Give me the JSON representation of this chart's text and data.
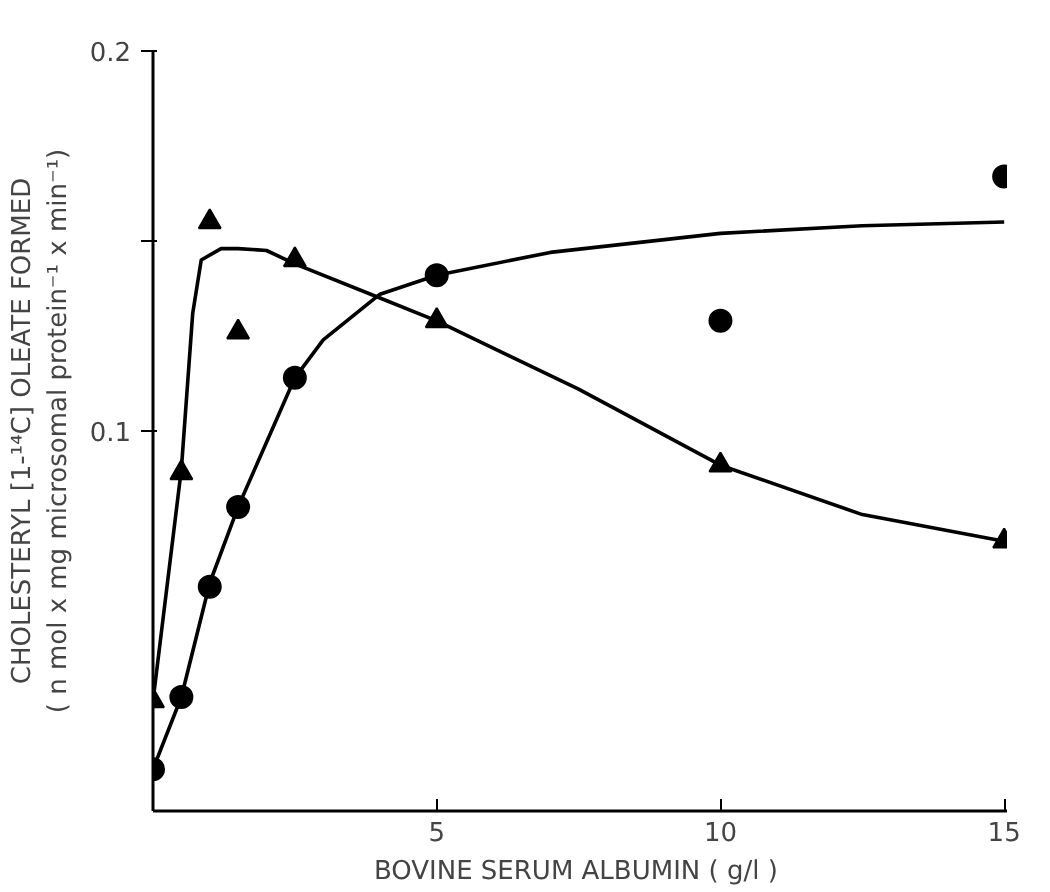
{
  "chart_data": {
    "type": "scatter",
    "xlabel": "BOVINE SERUM ALBUMIN  ( g/l )",
    "ylabel": "CHOLESTERYL [1-¹⁴C] OLEATE FORMED\n( n mol x mg microsomal protein⁻¹ x min⁻¹)",
    "xlim": [
      0,
      15.05
    ],
    "ylim": [
      0,
      0.2
    ],
    "xticks": [
      5,
      10,
      15
    ],
    "yticks": [
      {
        "value": 0.1,
        "label": "0.1"
      },
      {
        "value": 0.15,
        "label": null
      },
      {
        "value": 0.2,
        "label": "0.2"
      }
    ],
    "grid": false,
    "series": [
      {
        "marker": "circle",
        "color": "#000000",
        "x": [
          0,
          0.5,
          1,
          1.5,
          2.5,
          5,
          10,
          15
        ],
        "values": [
          0.011,
          0.03,
          0.059,
          0.08,
          0.114,
          0.141,
          0.129,
          0.167
        ]
      },
      {
        "marker": "triangle",
        "color": "#000000",
        "x": [
          0,
          0.5,
          1,
          1.5,
          2.5,
          5,
          10,
          15
        ],
        "values": [
          0.029,
          0.089,
          0.155,
          0.126,
          0.145,
          0.129,
          0.091,
          0.071
        ]
      },
      {
        "type": "line",
        "color": "#000000",
        "x": [
          0,
          0.5,
          1,
          1.5,
          2.5,
          3,
          4,
          5,
          7,
          10,
          12.5,
          15
        ],
        "values": [
          0.011,
          0.03,
          0.06,
          0.08,
          0.114,
          0.124,
          0.136,
          0.141,
          0.147,
          0.152,
          0.154,
          0.155
        ]
      },
      {
        "type": "line",
        "color": "#000000",
        "x": [
          0,
          0.5,
          0.7,
          0.85,
          1.2,
          1.5,
          2,
          2.5,
          4,
          5,
          7.5,
          10,
          12.5,
          15
        ],
        "values": [
          0.029,
          0.09,
          0.131,
          0.145,
          0.148,
          0.148,
          0.1475,
          0.144,
          0.135,
          0.129,
          0.111,
          0.091,
          0.078,
          0.071
        ]
      }
    ]
  }
}
